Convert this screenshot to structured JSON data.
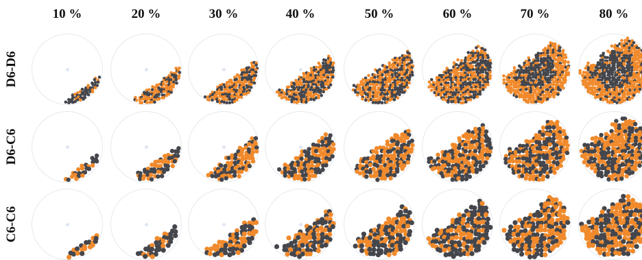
{
  "columns": [
    "10 %",
    "20 %",
    "30 %",
    "40 %",
    "50 %",
    "60 %",
    "70 %",
    "80 %"
  ],
  "rows": [
    "D6-D6",
    "D6-C6",
    "C6-C6"
  ],
  "fill_levels": [
    0.1,
    0.2,
    0.3,
    0.4,
    0.5,
    0.6,
    0.7,
    0.8
  ],
  "colors": {
    "orange_particles": "#f08a2c",
    "dark_particles": "#44464c",
    "drum_outline": "#e6e8ec",
    "hub": "#dfe6f3"
  }
}
